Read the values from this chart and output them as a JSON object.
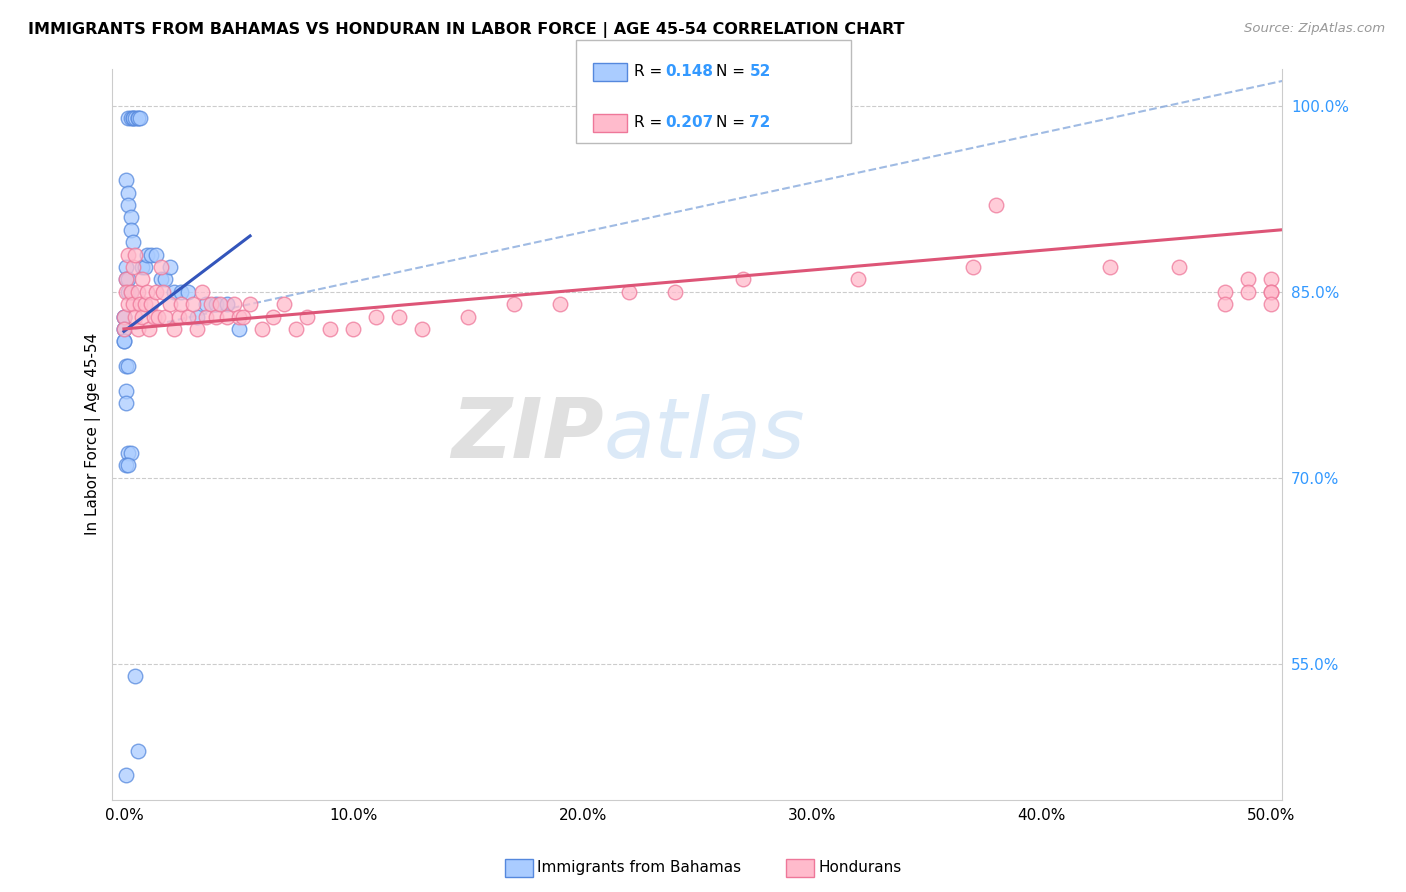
{
  "title": "IMMIGRANTS FROM BAHAMAS VS HONDURAN IN LABOR FORCE | AGE 45-54 CORRELATION CHART",
  "source": "Source: ZipAtlas.com",
  "ylabel": "In Labor Force | Age 45-54",
  "x_ticks": [
    0.0,
    0.1,
    0.2,
    0.3,
    0.4,
    0.5
  ],
  "x_tick_labels": [
    "0.0%",
    "10.0%",
    "20.0%",
    "30.0%",
    "40.0%",
    "50.0%"
  ],
  "y_ticks_right": [
    1.0,
    0.85,
    0.7,
    0.55
  ],
  "y_tick_labels_right": [
    "100.0%",
    "85.0%",
    "70.0%",
    "55.0%"
  ],
  "x_range": [
    -0.005,
    0.505
  ],
  "y_range": [
    0.44,
    1.03
  ],
  "legend_label1": "Immigrants from Bahamas",
  "legend_label2": "Hondurans",
  "R1": "0.148",
  "N1": "52",
  "R2": "0.207",
  "N2": "72",
  "color_bahamas_fill": "#aaccff",
  "color_bahamas_edge": "#5588dd",
  "color_honduran_fill": "#ffbbcc",
  "color_honduran_edge": "#ee7799",
  "color_line_bahamas": "#3355bb",
  "color_line_honduran": "#dd5577",
  "color_line_dashed": "#88aadd",
  "color_grid": "#cccccc",
  "color_ytick_right": "#3399ff",
  "watermark_color": "#cce0f5",
  "watermark_zip": "ZIP",
  "watermark_atlas": "atlas",
  "bahamas_x": [
    0.002,
    0.003,
    0.004,
    0.004,
    0.005,
    0.006,
    0.006,
    0.007,
    0.001,
    0.002,
    0.002,
    0.003,
    0.003,
    0.004,
    0.001,
    0.001,
    0.002,
    0.002,
    0.003,
    0.0,
    0.0,
    0.0,
    0.0,
    0.0,
    0.0,
    0.008,
    0.009,
    0.01,
    0.012,
    0.014,
    0.016,
    0.018,
    0.02,
    0.022,
    0.025,
    0.028,
    0.032,
    0.036,
    0.04,
    0.045,
    0.05,
    0.001,
    0.002,
    0.001,
    0.001,
    0.002,
    0.003,
    0.001,
    0.002,
    0.005,
    0.006,
    0.001
  ],
  "bahamas_y": [
    0.99,
    0.99,
    0.99,
    0.99,
    0.99,
    0.99,
    0.99,
    0.99,
    0.94,
    0.93,
    0.92,
    0.91,
    0.9,
    0.89,
    0.87,
    0.86,
    0.86,
    0.85,
    0.85,
    0.83,
    0.83,
    0.82,
    0.82,
    0.81,
    0.81,
    0.87,
    0.87,
    0.88,
    0.88,
    0.88,
    0.86,
    0.86,
    0.87,
    0.85,
    0.85,
    0.85,
    0.83,
    0.84,
    0.84,
    0.84,
    0.82,
    0.79,
    0.79,
    0.77,
    0.76,
    0.72,
    0.72,
    0.71,
    0.71,
    0.54,
    0.48,
    0.46
  ],
  "honduran_x": [
    0.0,
    0.0,
    0.001,
    0.001,
    0.002,
    0.002,
    0.003,
    0.004,
    0.004,
    0.005,
    0.005,
    0.006,
    0.006,
    0.007,
    0.008,
    0.008,
    0.009,
    0.01,
    0.011,
    0.012,
    0.013,
    0.014,
    0.015,
    0.016,
    0.017,
    0.018,
    0.02,
    0.022,
    0.024,
    0.025,
    0.028,
    0.03,
    0.032,
    0.034,
    0.036,
    0.038,
    0.04,
    0.042,
    0.045,
    0.048,
    0.05,
    0.052,
    0.055,
    0.06,
    0.065,
    0.07,
    0.075,
    0.08,
    0.09,
    0.1,
    0.11,
    0.12,
    0.13,
    0.15,
    0.17,
    0.19,
    0.22,
    0.24,
    0.27,
    0.32,
    0.37,
    0.38,
    0.43,
    0.46,
    0.48,
    0.48,
    0.49,
    0.49,
    0.5,
    0.5,
    0.5,
    0.5
  ],
  "honduran_y": [
    0.83,
    0.82,
    0.86,
    0.85,
    0.88,
    0.84,
    0.85,
    0.87,
    0.84,
    0.88,
    0.83,
    0.85,
    0.82,
    0.84,
    0.86,
    0.83,
    0.84,
    0.85,
    0.82,
    0.84,
    0.83,
    0.85,
    0.83,
    0.87,
    0.85,
    0.83,
    0.84,
    0.82,
    0.83,
    0.84,
    0.83,
    0.84,
    0.82,
    0.85,
    0.83,
    0.84,
    0.83,
    0.84,
    0.83,
    0.84,
    0.83,
    0.83,
    0.84,
    0.82,
    0.83,
    0.84,
    0.82,
    0.83,
    0.82,
    0.82,
    0.83,
    0.83,
    0.82,
    0.83,
    0.84,
    0.84,
    0.85,
    0.85,
    0.86,
    0.86,
    0.87,
    0.92,
    0.87,
    0.87,
    0.85,
    0.84,
    0.86,
    0.85,
    0.86,
    0.85,
    0.85,
    0.84
  ],
  "bah_line_x": [
    0.0,
    0.055
  ],
  "bah_line_y": [
    0.818,
    0.895
  ],
  "hon_line_x": [
    0.0,
    0.505
  ],
  "hon_line_y": [
    0.82,
    0.9
  ],
  "dash_line_x": [
    0.0,
    0.505
  ],
  "dash_line_y": [
    0.818,
    1.02
  ]
}
